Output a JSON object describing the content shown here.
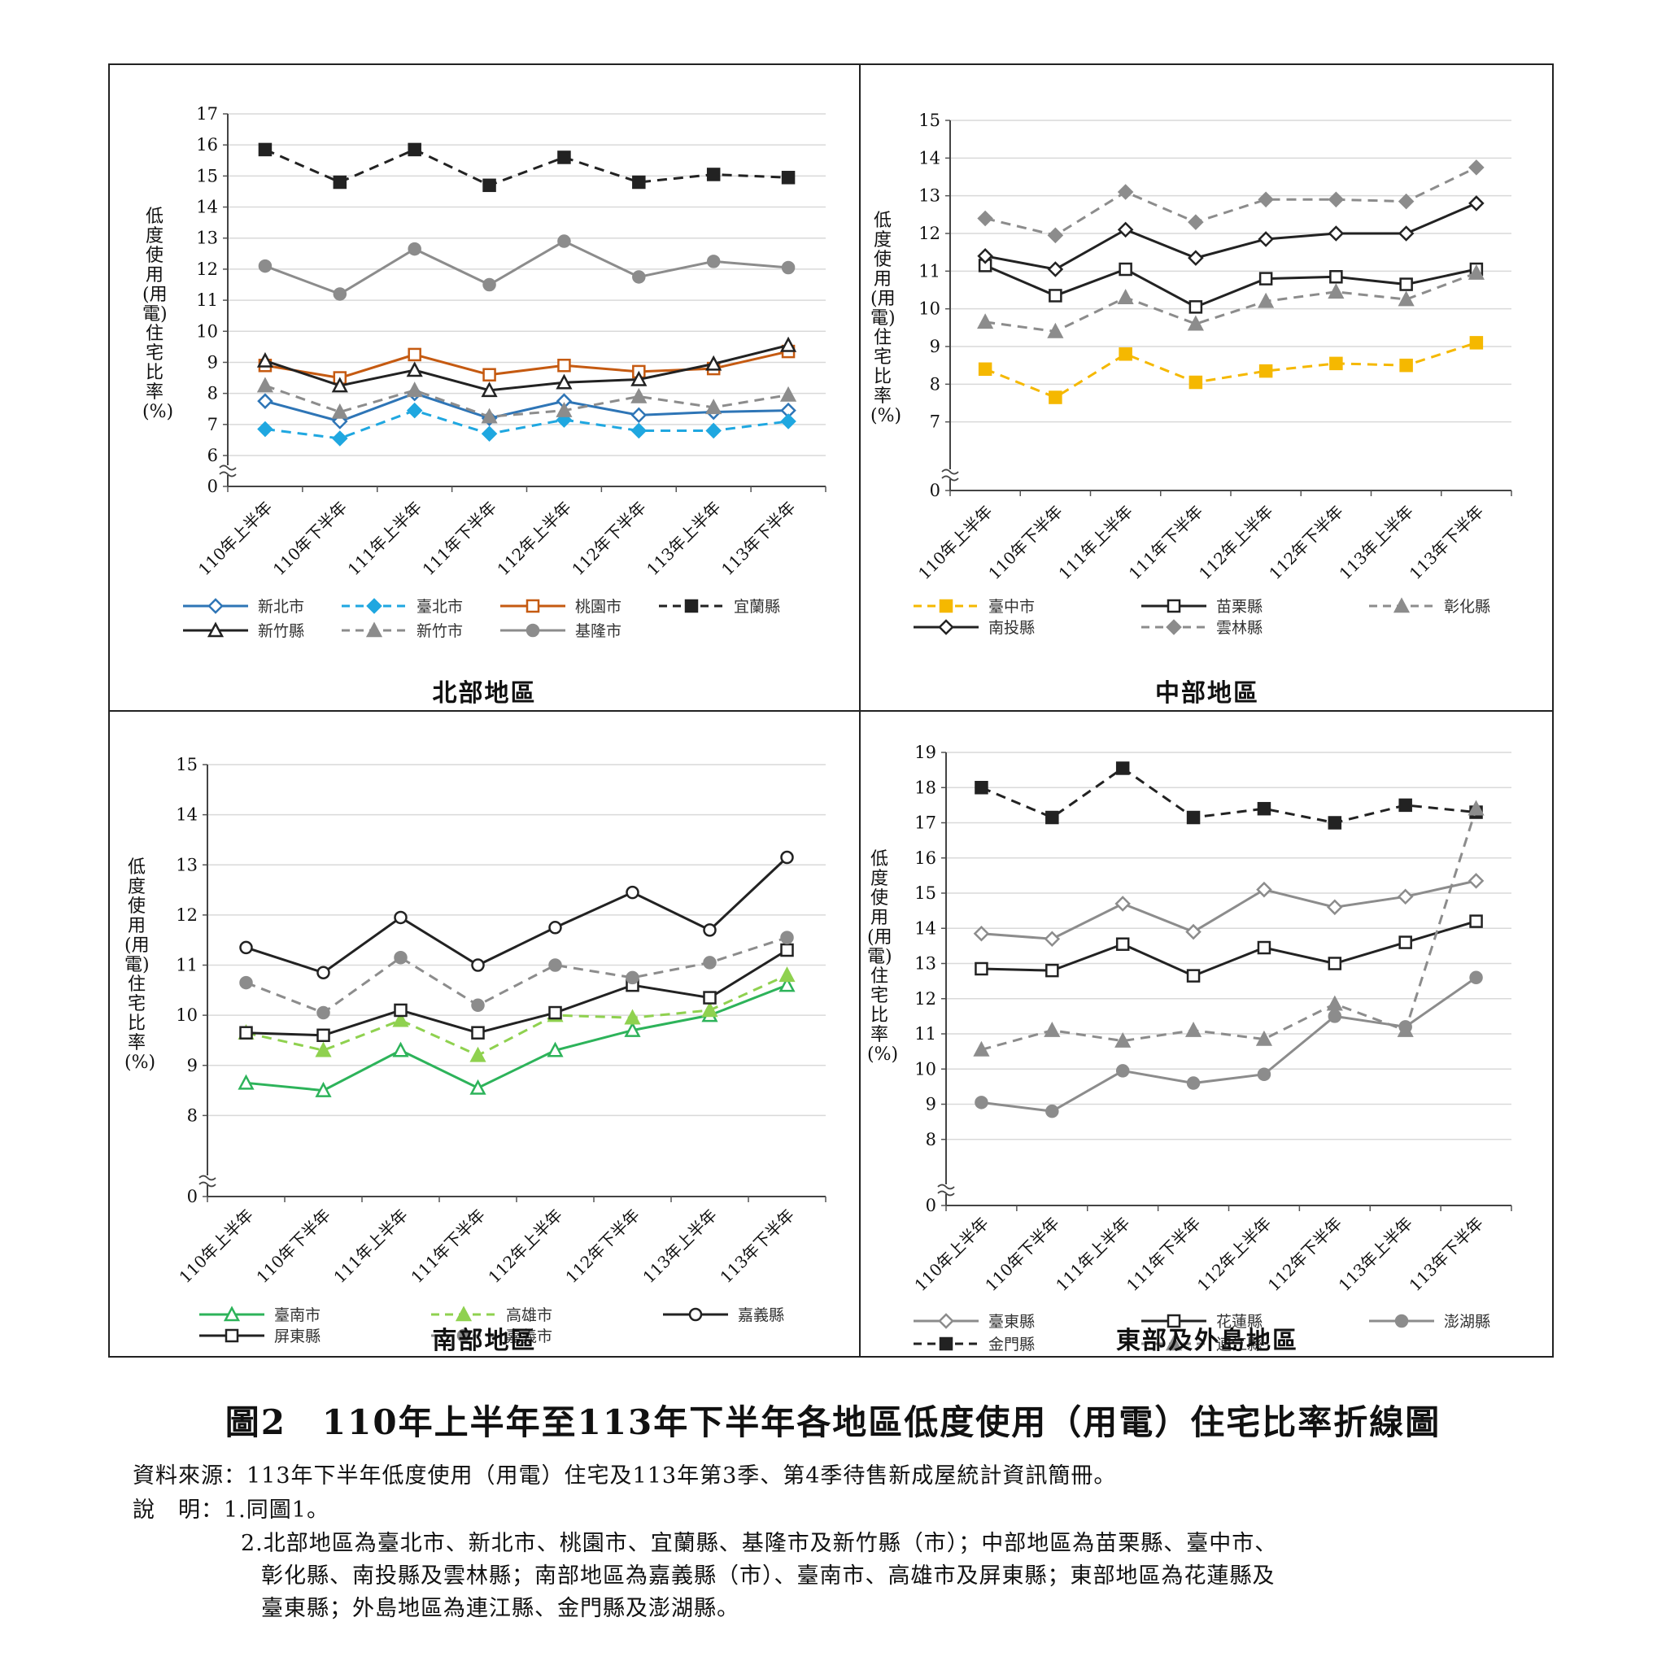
{
  "caption": "圖2　110年上半年至113年下半年各地區低度使用（用電）住宅比率折線圖",
  "source_note": "資料來源：113年下半年低度使用（用電）住宅及113年第3季、第4季待售新成屋統計資訊簡冊。",
  "note_label": "說　明：1.同圖1。",
  "note_2_lines": [
    "2.北部地區為臺北市、新北市、桃園市、宜蘭縣、基隆市及新竹縣（市）；中部地區為苗栗縣、臺中市、",
    "彰化縣、南投縣及雲林縣；南部地區為嘉義縣（市）、臺南市、高雄市及屏東縣；東部地區為花蓮縣及",
    "臺東縣；外島地區為連江縣、金門縣及澎湖縣。"
  ],
  "chart_data": [
    {
      "type": "line",
      "title": "北部地區",
      "ylabel": "低度使用(用電)住宅比率(%)",
      "y_axis_break": true,
      "ylim": [
        6,
        17
      ],
      "yticks": [
        0,
        6,
        7,
        8,
        9,
        10,
        11,
        12,
        13,
        14,
        15,
        16,
        17
      ],
      "categories": [
        "110年上半年",
        "110年下半年",
        "111年上半年",
        "111年下半年",
        "112年上半年",
        "112年下半年",
        "113年上半年",
        "113年下半年"
      ],
      "legend_columns": 4,
      "series": [
        {
          "name": "新北市",
          "color": "#2e75b6",
          "dash": false,
          "marker": "diamond-open",
          "values": [
            7.75,
            7.1,
            8.0,
            7.2,
            7.75,
            7.3,
            7.4,
            7.45
          ]
        },
        {
          "name": "臺北市",
          "color": "#1fa7e0",
          "dash": true,
          "marker": "diamond-filled",
          "values": [
            6.85,
            6.55,
            7.45,
            6.7,
            7.15,
            6.8,
            6.8,
            7.1
          ]
        },
        {
          "name": "桃園市",
          "color": "#c55a11",
          "dash": false,
          "marker": "square-open",
          "values": [
            8.9,
            8.5,
            9.25,
            8.6,
            8.9,
            8.7,
            8.8,
            9.35
          ]
        },
        {
          "name": "宜蘭縣",
          "color": "#222222",
          "dash": true,
          "marker": "square-filled",
          "values": [
            15.85,
            14.8,
            15.85,
            14.7,
            15.6,
            14.8,
            15.05,
            14.95
          ]
        },
        {
          "name": "新竹縣",
          "color": "#222222",
          "dash": false,
          "marker": "triangle-open",
          "values": [
            9.05,
            8.25,
            8.75,
            8.1,
            8.35,
            8.45,
            8.95,
            9.55
          ]
        },
        {
          "name": "新竹市",
          "color": "#8c8c8c",
          "dash": true,
          "marker": "triangle-filled",
          "values": [
            8.25,
            7.4,
            8.1,
            7.25,
            7.45,
            7.9,
            7.55,
            7.95
          ]
        },
        {
          "name": "基隆市",
          "color": "#8c8c8c",
          "dash": false,
          "marker": "circle-filled",
          "values": [
            12.1,
            11.2,
            12.65,
            11.5,
            12.9,
            11.75,
            12.25,
            12.05
          ]
        }
      ]
    },
    {
      "type": "line",
      "title": "中部地區",
      "ylabel": "低度使用(用電)住宅比率(%)",
      "y_axis_break": true,
      "ylim": [
        6,
        15
      ],
      "yticks": [
        0,
        7,
        8,
        9,
        10,
        11,
        12,
        13,
        14,
        15
      ],
      "categories": [
        "110年上半年",
        "110年下半年",
        "111年上半年",
        "111年下半年",
        "112年上半年",
        "112年下半年",
        "113年上半年",
        "113年下半年"
      ],
      "legend_columns": 3,
      "series": [
        {
          "name": "臺中市",
          "color": "#f5b800",
          "dash": true,
          "marker": "square-filled",
          "values": [
            8.4,
            7.65,
            8.8,
            8.05,
            8.35,
            8.55,
            8.5,
            9.1
          ]
        },
        {
          "name": "苗栗縣",
          "color": "#222222",
          "dash": false,
          "marker": "square-open",
          "values": [
            11.15,
            10.35,
            11.05,
            10.05,
            10.8,
            10.85,
            10.65,
            11.05
          ]
        },
        {
          "name": "彰化縣",
          "color": "#8c8c8c",
          "dash": true,
          "marker": "triangle-filled",
          "values": [
            9.65,
            9.4,
            10.3,
            9.6,
            10.2,
            10.45,
            10.25,
            10.95
          ]
        },
        {
          "name": "南投縣",
          "color": "#222222",
          "dash": false,
          "marker": "diamond-open",
          "values": [
            11.4,
            11.05,
            12.1,
            11.35,
            11.85,
            12.0,
            12.0,
            12.8
          ]
        },
        {
          "name": "雲林縣",
          "color": "#8c8c8c",
          "dash": true,
          "marker": "diamond-filled",
          "values": [
            12.4,
            11.95,
            13.1,
            12.3,
            12.9,
            12.9,
            12.85,
            13.75
          ]
        }
      ]
    },
    {
      "type": "line",
      "title": "南部地區",
      "ylabel": "低度使用(用電)住宅比率(%)",
      "y_axis_break": true,
      "ylim": [
        7,
        15
      ],
      "yticks": [
        0,
        8,
        9,
        10,
        11,
        12,
        13,
        14,
        15
      ],
      "categories": [
        "110年上半年",
        "110年下半年",
        "111年上半年",
        "111年下半年",
        "112年上半年",
        "112年下半年",
        "113年上半年",
        "113年下半年"
      ],
      "legend_columns": 3,
      "series": [
        {
          "name": "臺南市",
          "color": "#2db35a",
          "dash": false,
          "marker": "triangle-open",
          "values": [
            8.65,
            8.5,
            9.3,
            8.55,
            9.3,
            9.7,
            10.0,
            10.6
          ]
        },
        {
          "name": "高雄市",
          "color": "#8fd14f",
          "dash": true,
          "marker": "triangle-filled",
          "values": [
            9.65,
            9.3,
            9.9,
            9.2,
            10.0,
            9.95,
            10.1,
            10.8
          ]
        },
        {
          "name": "嘉義縣",
          "color": "#222222",
          "dash": false,
          "marker": "circle-open",
          "values": [
            11.35,
            10.85,
            11.95,
            11.0,
            11.75,
            12.45,
            11.7,
            13.15
          ]
        },
        {
          "name": "屏東縣",
          "color": "#222222",
          "dash": false,
          "marker": "square-open",
          "values": [
            9.65,
            9.6,
            10.1,
            9.65,
            10.05,
            10.6,
            10.35,
            11.3
          ]
        },
        {
          "name": "嘉義市",
          "color": "#8c8c8c",
          "dash": true,
          "marker": "circle-filled",
          "values": [
            10.65,
            10.05,
            11.15,
            10.2,
            11.0,
            10.75,
            11.05,
            11.55
          ]
        }
      ]
    },
    {
      "type": "line",
      "title": "東部及外島地區",
      "ylabel": "低度使用(用電)住宅比率(%)",
      "y_axis_break": true,
      "ylim": [
        7,
        19
      ],
      "yticks": [
        0,
        8,
        9,
        10,
        11,
        12,
        13,
        14,
        15,
        16,
        17,
        18,
        19
      ],
      "categories": [
        "110年上半年",
        "110年下半年",
        "111年上半年",
        "111年下半年",
        "112年上半年",
        "112年下半年",
        "113年上半年",
        "113年下半年"
      ],
      "legend_columns": 3,
      "series": [
        {
          "name": "臺東縣",
          "color": "#8c8c8c",
          "dash": false,
          "marker": "diamond-open",
          "values": [
            13.85,
            13.7,
            14.7,
            13.9,
            15.1,
            14.6,
            14.9,
            15.35
          ]
        },
        {
          "name": "花蓮縣",
          "color": "#222222",
          "dash": false,
          "marker": "square-open",
          "values": [
            12.85,
            12.8,
            13.55,
            12.65,
            13.45,
            13.0,
            13.6,
            14.2
          ]
        },
        {
          "name": "澎湖縣",
          "color": "#8c8c8c",
          "dash": false,
          "marker": "circle-filled",
          "values": [
            9.05,
            8.8,
            9.95,
            9.6,
            9.85,
            11.5,
            11.2,
            12.6
          ]
        },
        {
          "name": "金門縣",
          "color": "#222222",
          "dash": true,
          "marker": "square-filled",
          "values": [
            18.0,
            17.15,
            18.55,
            17.15,
            17.4,
            17.0,
            17.5,
            17.3
          ]
        },
        {
          "name": "連江縣",
          "color": "#8c8c8c",
          "dash": true,
          "marker": "triangle-filled",
          "values": [
            10.55,
            11.1,
            10.8,
            11.1,
            10.85,
            11.85,
            11.1,
            17.4
          ]
        }
      ]
    }
  ]
}
